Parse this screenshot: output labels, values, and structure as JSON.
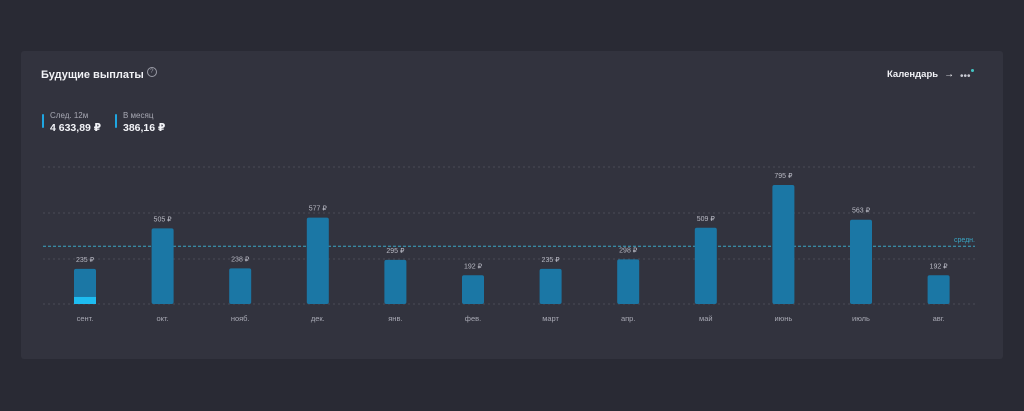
{
  "header": {
    "title": "Будущие выплаты",
    "help_icon": "question-circle-icon",
    "calendar_label": "Календарь",
    "calendar_icon": "arrow-right-icon",
    "more_icon": "more-dots-icon"
  },
  "stats": {
    "next12_label": "След. 12м",
    "next12_value": "4 633,89 ₽",
    "monthly_label": "В месяц",
    "monthly_value": "386,16 ₽"
  },
  "colors": {
    "bar": "#1b77a5",
    "bar_highlight": "#1ebcf0",
    "average_line": "#3aa6c4",
    "accent": "#43c6c4"
  },
  "chart_data": {
    "type": "bar",
    "categories": [
      "сент.",
      "окт.",
      "нояб.",
      "дек.",
      "янв.",
      "фев.",
      "март",
      "апр.",
      "май",
      "июнь",
      "июль",
      "авг."
    ],
    "values": [
      235,
      505,
      238,
      577,
      295,
      192,
      235,
      298,
      509,
      795,
      563,
      192
    ],
    "value_labels": [
      "235 ₽",
      "505 ₽",
      "238 ₽",
      "577 ₽",
      "295 ₽",
      "192 ₽",
      "235 ₽",
      "298 ₽",
      "509 ₽",
      "795 ₽",
      "563 ₽",
      "192 ₽"
    ],
    "paid_fraction_first_bar": 0.2,
    "average": 386.16,
    "average_label": "средн.",
    "grid": true,
    "ylim": [
      0,
      795
    ]
  }
}
